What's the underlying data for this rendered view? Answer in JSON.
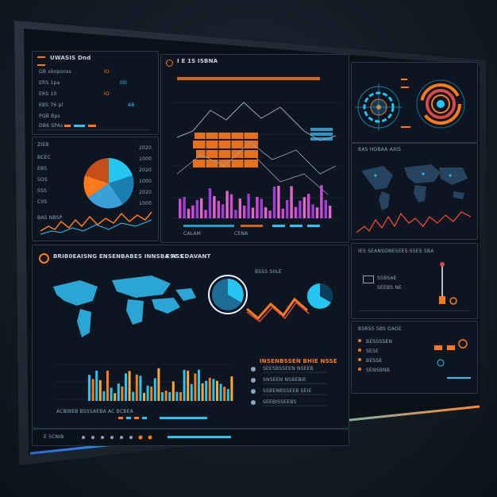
{
  "screen": {
    "top_left_title": "UWASIS Dnd",
    "top_left_rows": [
      "OB xkoponss",
      "ERS 1pa",
      "ERS 10",
      "EBS 76 pl",
      "PQB Bps",
      "DB6 SPAs"
    ],
    "top_left_values": [
      "IO",
      "IIO",
      "IO",
      "AB"
    ],
    "pie_panel_labels": [
      "ZIEB",
      "BCEC",
      "EBS",
      "SOS",
      "SSS",
      "C0S"
    ],
    "pie_panel_values": [
      "2020",
      "1000",
      "2020",
      "1000",
      "2020",
      "1000"
    ],
    "pie_panel_footer": "BAS NBSP",
    "main_chart_header": "I E 1S ISBNA",
    "main_chart_footer": [
      "CALAM",
      "CENA"
    ],
    "right_top_title": "BAS HOBAA AXIS",
    "lower_title": "BRIB0EAISNG ENSENBABES INNSBA ASS",
    "lower_title_right": "ESC CDAVANT",
    "lower_chart_label": "BSSS S0LE",
    "lower_list_title": "INSENBSSEN BHIE NSSE",
    "lower_list_items": [
      "SEESBSSEEN NSEEB",
      "SNSEEN NSBEBIE",
      "SSBENBSSEEB SEIE",
      "SEEBISSEEBS"
    ],
    "lower_footer": "ACBIBEB BSSSAEBA AC BCBEA",
    "right_mid_title": "IES SEANSONESEES SSES SBA",
    "right_mid_items": [
      "SSBSAE",
      "SEEBS NE"
    ],
    "right_bottom_title": "BSRSS SBS GAGE",
    "right_bottom_items": [
      "BESSSSEN",
      "SESE",
      "BESSE",
      "SENSBNB"
    ],
    "bottom_bar_label": "E SCNIB"
  },
  "colors": {
    "accent_orange": "#ff7a1a",
    "accent_cyan": "#25c6f2",
    "accent_magenta": "#d04ad6",
    "accent_purple": "#9b3fd6",
    "panel_bg": "#0d1620"
  },
  "icons": [
    "menu-icon",
    "target-icon",
    "gauge-icon",
    "donut-icon",
    "globe-icon",
    "settings-icon"
  ]
}
